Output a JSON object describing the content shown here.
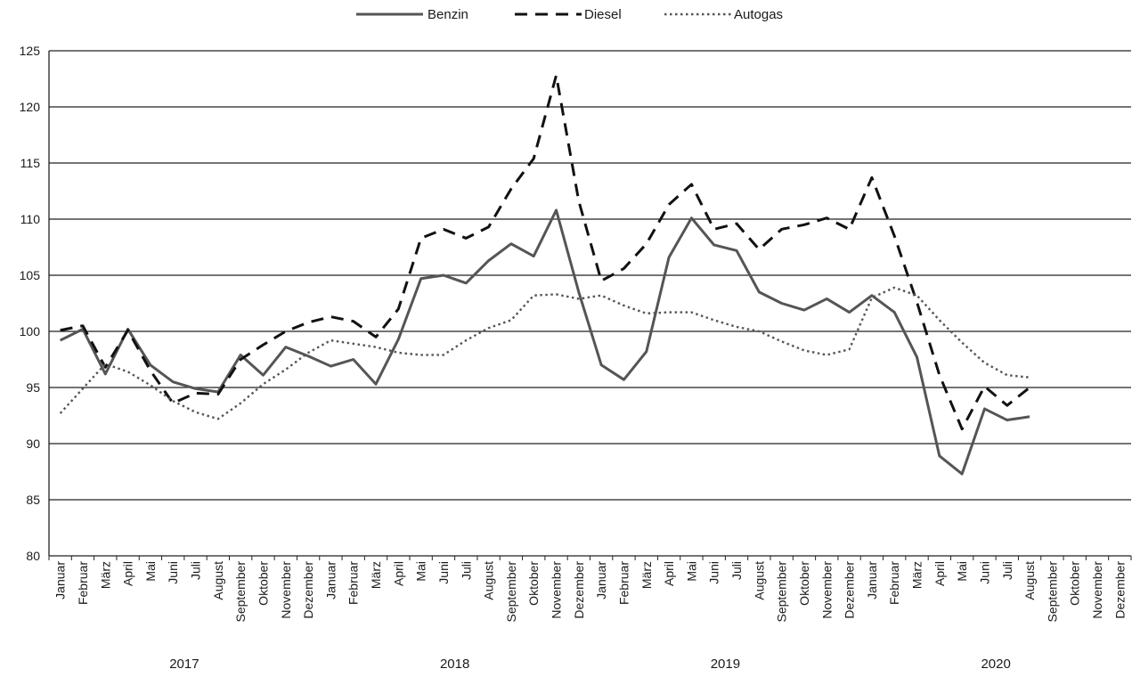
{
  "chart_data": {
    "type": "line",
    "title": "",
    "xlabel": "",
    "ylabel": "",
    "ylim": [
      80,
      125
    ],
    "yticks": [
      80,
      85,
      90,
      95,
      100,
      105,
      110,
      115,
      120,
      125
    ],
    "grid": "horizontal",
    "legend_position": "top-center",
    "years": [
      "2017",
      "2018",
      "2019",
      "2020"
    ],
    "months": [
      "Januar",
      "Februar",
      "März",
      "April",
      "Mai",
      "Juni",
      "Juli",
      "August",
      "September",
      "Oktober",
      "November",
      "Dezember"
    ],
    "categories": [
      "Januar 2017",
      "Februar 2017",
      "März 2017",
      "April 2017",
      "Mai 2017",
      "Juni 2017",
      "Juli 2017",
      "August 2017",
      "September 2017",
      "Oktober 2017",
      "November 2017",
      "Dezember 2017",
      "Januar 2018",
      "Februar 2018",
      "März 2018",
      "April 2018",
      "Mai 2018",
      "Juni 2018",
      "Juli 2018",
      "August 2018",
      "September 2018",
      "Oktober 2018",
      "November 2018",
      "Dezember 2018",
      "Januar 2019",
      "Februar 2019",
      "März 2019",
      "April 2019",
      "Mai 2019",
      "Juni 2019",
      "Juli 2019",
      "August 2019",
      "September 2019",
      "Oktober 2019",
      "November 2019",
      "Dezember 2019",
      "Januar 2020",
      "Februar 2020",
      "März 2020",
      "April 2020",
      "Mai 2020",
      "Juni 2020",
      "Juli 2020",
      "August 2020",
      "September 2020",
      "Oktober 2020",
      "November 2020",
      "Dezember 2020"
    ],
    "series": [
      {
        "name": "Benzin",
        "color": "#555555",
        "style": "solid",
        "values": [
          99.2,
          100.2,
          96.2,
          100.2,
          97.0,
          95.5,
          94.9,
          94.6,
          97.9,
          96.1,
          98.6,
          97.8,
          96.9,
          97.5,
          95.3,
          99.3,
          104.7,
          105.0,
          104.3,
          106.3,
          107.8,
          106.7,
          110.8,
          103.5,
          97.0,
          95.7,
          98.2,
          106.6,
          110.1,
          107.7,
          107.2,
          103.5,
          102.5,
          101.9,
          102.9,
          101.7,
          103.2,
          101.7,
          97.7,
          88.9,
          87.3,
          93.1,
          92.1,
          92.4,
          null,
          null,
          null,
          null
        ]
      },
      {
        "name": "Diesel",
        "color": "#111111",
        "style": "dashed",
        "values": [
          100.1,
          100.5,
          96.8,
          100.1,
          96.5,
          93.6,
          94.5,
          94.4,
          97.5,
          98.8,
          100.0,
          100.8,
          101.3,
          100.9,
          99.5,
          102.0,
          108.3,
          109.1,
          108.3,
          109.3,
          112.7,
          115.4,
          122.8,
          111.6,
          104.5,
          105.6,
          107.8,
          111.3,
          113.1,
          109.1,
          109.6,
          107.3,
          109.1,
          109.5,
          110.1,
          109.1,
          113.7,
          108.5,
          102.6,
          96.1,
          91.3,
          95.1,
          93.4,
          95.0,
          null,
          null,
          null,
          null
        ]
      },
      {
        "name": "Autogas",
        "color": "#555555",
        "style": "dotted",
        "values": [
          92.7,
          94.9,
          97.1,
          96.4,
          95.2,
          93.8,
          92.8,
          92.2,
          93.6,
          95.3,
          96.6,
          98.1,
          99.2,
          98.9,
          98.6,
          98.1,
          97.9,
          97.9,
          99.2,
          100.3,
          101.0,
          103.2,
          103.3,
          102.9,
          103.2,
          102.3,
          101.6,
          101.7,
          101.7,
          101.0,
          100.4,
          100.0,
          99.1,
          98.3,
          97.9,
          98.4,
          103.0,
          103.9,
          103.2,
          101.0,
          99.0,
          97.2,
          96.1,
          95.9,
          null,
          null,
          null,
          null
        ]
      }
    ]
  }
}
